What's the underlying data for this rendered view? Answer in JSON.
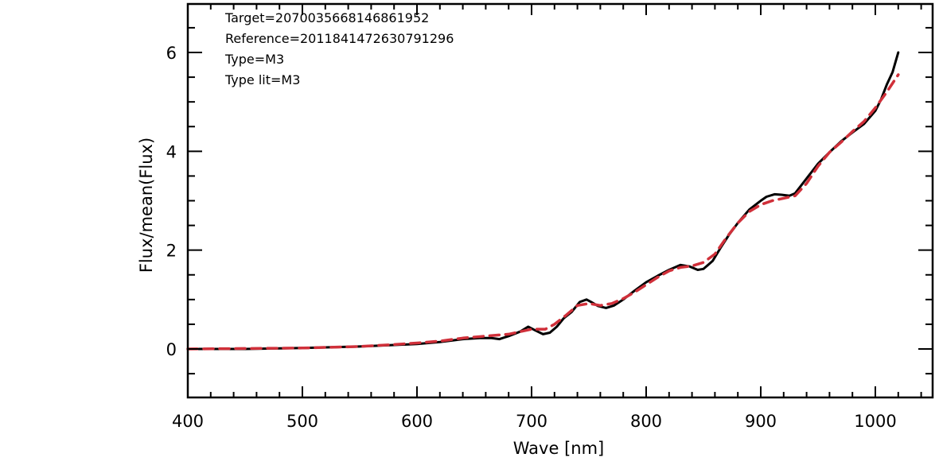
{
  "chart_data": {
    "type": "line",
    "title": "",
    "xlabel": "Wave [nm]",
    "ylabel": "Flux/mean(Flux)",
    "xlim": [
      400,
      1050
    ],
    "ylim": [
      -1,
      7
    ],
    "x_ticks": [
      400,
      500,
      600,
      700,
      800,
      900,
      1000
    ],
    "x_tick_labels": [
      "400",
      "500",
      "600",
      "700",
      "800",
      "900",
      "1000"
    ],
    "y_ticks": [
      0,
      2,
      4,
      6
    ],
    "y_tick_labels": [
      "0",
      "2",
      "4",
      "6"
    ],
    "grid": false,
    "annotations": [
      "Target=2070035668146861952",
      "Reference=2011841472630791296",
      "Type=M3",
      "Type lit=M3"
    ],
    "series": [
      {
        "color": "#000000",
        "style": "solid",
        "x": [
          400,
          450,
          500,
          550,
          580,
          600,
          620,
          640,
          655,
          665,
          672,
          680,
          690,
          697,
          703,
          710,
          716,
          722,
          728,
          735,
          742,
          748,
          752,
          758,
          765,
          772,
          780,
          790,
          800,
          810,
          820,
          830,
          838,
          845,
          850,
          858,
          865,
          872,
          880,
          890,
          900,
          905,
          912,
          918,
          925,
          930,
          940,
          950,
          960,
          970,
          980,
          990,
          1000,
          1005,
          1010,
          1015,
          1020
        ],
        "y": [
          0.0,
          0.0,
          0.02,
          0.05,
          0.08,
          0.1,
          0.14,
          0.2,
          0.22,
          0.22,
          0.2,
          0.26,
          0.35,
          0.45,
          0.38,
          0.3,
          0.33,
          0.45,
          0.62,
          0.75,
          0.95,
          1.0,
          0.95,
          0.87,
          0.83,
          0.88,
          1.0,
          1.18,
          1.35,
          1.48,
          1.6,
          1.7,
          1.67,
          1.6,
          1.62,
          1.78,
          2.05,
          2.3,
          2.55,
          2.82,
          3.0,
          3.08,
          3.13,
          3.12,
          3.1,
          3.15,
          3.45,
          3.75,
          3.98,
          4.2,
          4.38,
          4.55,
          4.82,
          5.05,
          5.35,
          5.6,
          6.0
        ]
      },
      {
        "color": "#d0303a",
        "style": "dashed",
        "x": [
          400,
          450,
          500,
          550,
          580,
          600,
          620,
          640,
          660,
          680,
          700,
          712,
          720,
          730,
          740,
          750,
          760,
          770,
          780,
          790,
          800,
          810,
          820,
          830,
          840,
          850,
          860,
          870,
          880,
          890,
          900,
          910,
          920,
          930,
          940,
          950,
          960,
          970,
          980,
          990,
          1000,
          1010,
          1020
        ],
        "y": [
          0.0,
          0.01,
          0.02,
          0.05,
          0.09,
          0.12,
          0.16,
          0.22,
          0.26,
          0.3,
          0.4,
          0.4,
          0.5,
          0.68,
          0.88,
          0.92,
          0.88,
          0.92,
          1.02,
          1.15,
          1.3,
          1.45,
          1.58,
          1.65,
          1.68,
          1.75,
          1.92,
          2.25,
          2.55,
          2.78,
          2.92,
          3.0,
          3.05,
          3.1,
          3.35,
          3.7,
          3.98,
          4.18,
          4.4,
          4.6,
          4.88,
          5.2,
          5.55
        ]
      }
    ]
  }
}
